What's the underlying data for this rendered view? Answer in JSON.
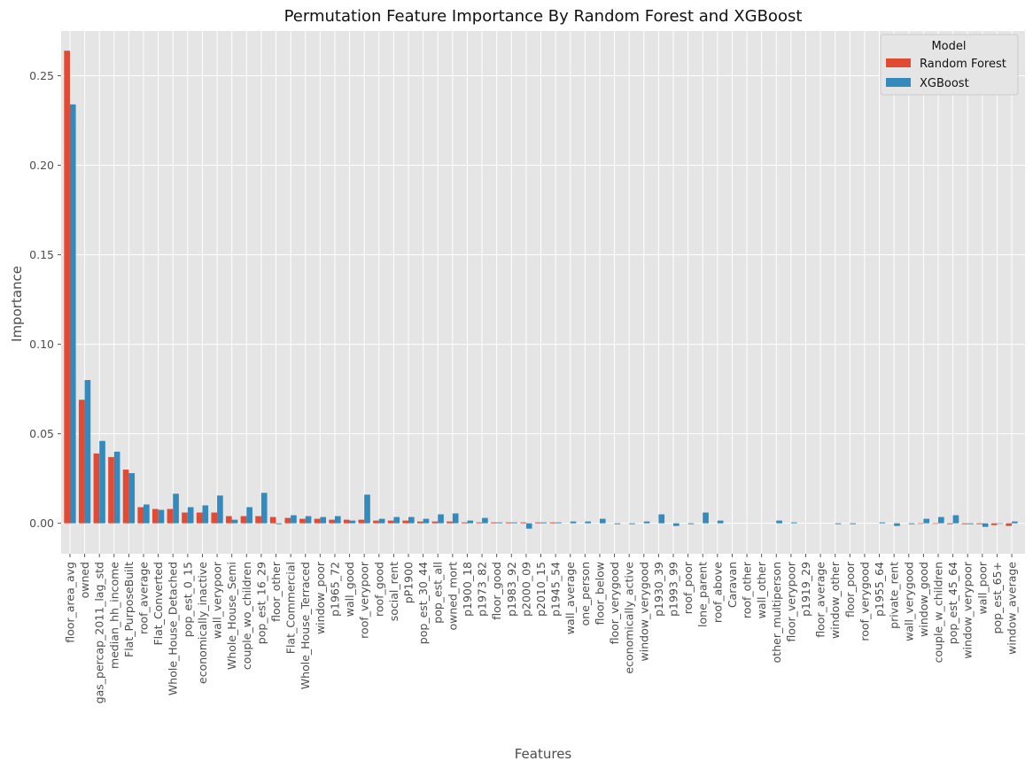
{
  "chart_data": {
    "type": "bar",
    "title": "Permutation Feature Importance By Random Forest and XGBoost",
    "xlabel": "Features",
    "ylabel": "Importance",
    "ylim": [
      -0.017,
      0.275
    ],
    "yticks": [
      0.0,
      0.05,
      0.1,
      0.15,
      0.2,
      0.25
    ],
    "ytick_labels": [
      "0.00",
      "0.05",
      "0.10",
      "0.15",
      "0.20",
      "0.25"
    ],
    "grid": true,
    "legend": {
      "title": "Model",
      "position": "top-right"
    },
    "categories": [
      "floor_area_avg",
      "owned",
      "gas_percap_2011_lag_std",
      "median_hh_income",
      "Flat_PurposeBuilt",
      "roof_average",
      "Flat_Converted",
      "Whole_House_Detached",
      "pop_est_0_15",
      "economically_inactive",
      "wall_verypoor",
      "Whole_House_Semi",
      "couple_wo_children",
      "pop_est_16_29",
      "floor_other",
      "Flat_Commercial",
      "Whole_House_Terraced",
      "window_poor",
      "p1965_72",
      "wall_good",
      "roof_verypoor",
      "roof_good",
      "social_rent",
      "pP1900",
      "pop_est_30_44",
      "pop_est_all",
      "owned_mort",
      "p1900_18",
      "p1973_82",
      "floor_good",
      "p1983_92",
      "p2000_09",
      "p2010_15",
      "p1945_54",
      "wall_average",
      "one_person",
      "floor_below",
      "floor_verygood",
      "economically_active",
      "window_verygood",
      "p1930_39",
      "p1993_99",
      "roof_poor",
      "lone_parent",
      "roof_above",
      "Caravan",
      "roof_other",
      "wall_other",
      "other_multiperson",
      "floor_verypoor",
      "p1919_29",
      "floor_average",
      "window_other",
      "floor_poor",
      "roof_verygood",
      "p1955_64",
      "private_rent",
      "wall_verygood",
      "window_good",
      "couple_w_children",
      "pop_est_45_64",
      "window_verypoor",
      "wall_poor",
      "pop_est_65+",
      "window_average"
    ],
    "series": [
      {
        "name": "Random Forest",
        "color": "#E24A33",
        "values": [
          0.264,
          0.069,
          0.039,
          0.037,
          0.03,
          0.009,
          0.008,
          0.008,
          0.006,
          0.006,
          0.006,
          0.004,
          0.004,
          0.004,
          0.0035,
          0.003,
          0.0025,
          0.0025,
          0.002,
          0.002,
          0.002,
          0.0015,
          0.0015,
          0.0015,
          0.001,
          0.001,
          0.001,
          0.0005,
          0.0005,
          0.0005,
          0.0005,
          0.0005,
          0.0005,
          0.0005,
          0.0,
          0.0,
          0.0,
          0.0,
          0.0,
          0.0,
          0.0,
          0.0,
          0.0,
          0.0,
          0.0,
          0.0,
          0.0,
          0.0,
          0.0,
          0.0,
          0.0,
          0.0,
          0.0,
          0.0,
          0.0,
          0.0,
          0.0,
          0.0,
          -0.0003,
          -0.0003,
          -0.0005,
          -0.0005,
          -0.0005,
          -0.001,
          -0.0015
        ]
      },
      {
        "name": "XGBoost",
        "color": "#348ABD",
        "values": [
          0.234,
          0.08,
          0.046,
          0.04,
          0.028,
          0.0105,
          0.0075,
          0.0165,
          0.009,
          0.01,
          0.0155,
          0.002,
          0.009,
          0.017,
          -0.0005,
          0.0045,
          0.004,
          0.0035,
          0.004,
          0.0015,
          0.016,
          0.0025,
          0.0035,
          0.0035,
          0.0025,
          0.005,
          0.0055,
          0.0015,
          0.003,
          0.0005,
          0.0005,
          -0.003,
          0.0005,
          0.0005,
          0.001,
          0.001,
          0.0025,
          -0.0005,
          -0.0005,
          0.001,
          0.005,
          -0.0015,
          -0.0005,
          0.006,
          0.0015,
          0.0,
          0.0,
          0.0,
          0.0015,
          0.0005,
          0.0,
          0.0,
          -0.0005,
          -0.0005,
          0.0,
          0.0005,
          -0.0015,
          -0.0005,
          0.0025,
          0.0035,
          0.0045,
          -0.0005,
          -0.002,
          -0.0003,
          0.001
        ]
      }
    ]
  }
}
